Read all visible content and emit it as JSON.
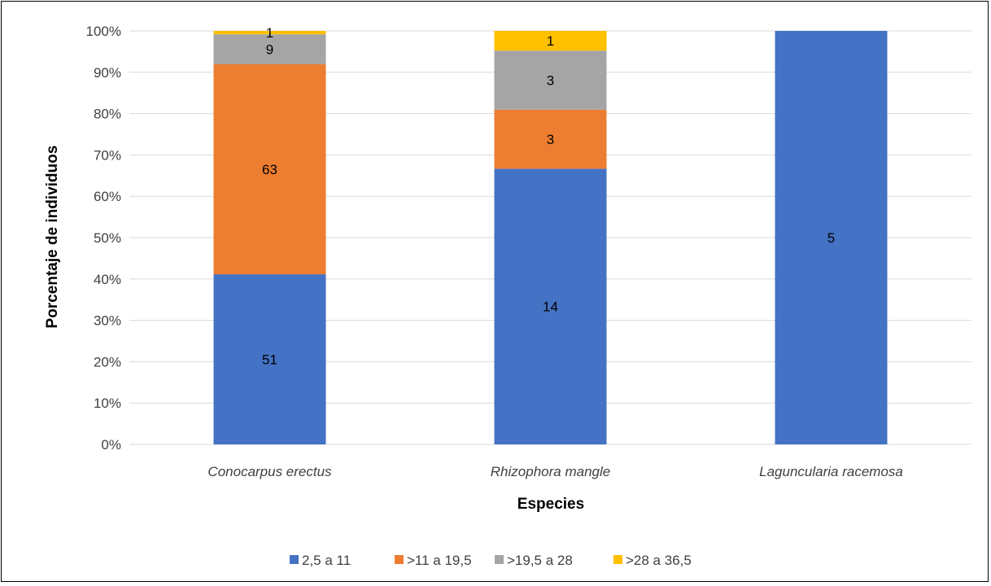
{
  "chart_data": {
    "type": "bar",
    "stacked": "percent",
    "title": "",
    "xlabel": "Especies",
    "ylabel": "Porcentaje de individuos",
    "ylim": [
      0,
      100
    ],
    "yticks": [
      "0%",
      "10%",
      "20%",
      "30%",
      "40%",
      "50%",
      "60%",
      "70%",
      "80%",
      "90%",
      "100%"
    ],
    "grid": true,
    "legend_position": "bottom",
    "categories": [
      "Conocarpus erectus",
      "Rhizophora mangle",
      "Laguncularia racemosa"
    ],
    "series": [
      {
        "name": "2,5 a 11",
        "color": "#4472C4",
        "values": [
          51,
          14,
          5
        ]
      },
      {
        "name": ">11 a 19,5",
        "color": "#ED7D31",
        "values": [
          63,
          3,
          0
        ]
      },
      {
        "name": ">19,5 a 28",
        "color": "#A5A5A5",
        "values": [
          9,
          3,
          0
        ]
      },
      {
        "name": ">28 a 36,5",
        "color": "#FFC000",
        "values": [
          1,
          1,
          0
        ]
      }
    ]
  }
}
